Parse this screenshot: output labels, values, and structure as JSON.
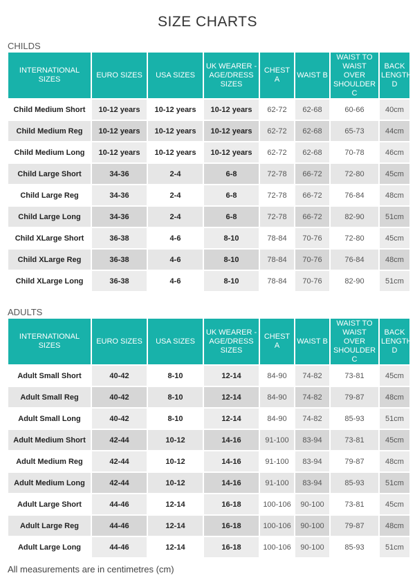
{
  "title": "SIZE CHARTS",
  "columns": [
    "INTERNATIONAL SIZES",
    "EURO SIZES",
    "USA SIZES",
    "UK WEARER - AGE/DRESS SIZES",
    "CHEST A",
    "WAIST B",
    "WAIST TO WAIST OVER SHOULDER C",
    "BACK LENGTH D"
  ],
  "sections": [
    {
      "label": "CHILDS",
      "rows": [
        [
          "Child Medium Short",
          "10-12 years",
          "10-12 years",
          "10-12 years",
          "62-72",
          "62-68",
          "60-66",
          "40cm"
        ],
        [
          "Child Medium Reg",
          "10-12 years",
          "10-12 years",
          "10-12 years",
          "62-72",
          "62-68",
          "65-73",
          "44cm"
        ],
        [
          "Child Medium Long",
          "10-12 years",
          "10-12 years",
          "10-12 years",
          "62-72",
          "62-68",
          "70-78",
          "46cm"
        ],
        [
          "Child Large Short",
          "34-36",
          "2-4",
          "6-8",
          "72-78",
          "66-72",
          "72-80",
          "45cm"
        ],
        [
          "Child Large Reg",
          "34-36",
          "2-4",
          "6-8",
          "72-78",
          "66-72",
          "76-84",
          "48cm"
        ],
        [
          "Child Large Long",
          "34-36",
          "2-4",
          "6-8",
          "72-78",
          "66-72",
          "82-90",
          "51cm"
        ],
        [
          "Child XLarge Short",
          "36-38",
          "4-6",
          "8-10",
          "78-84",
          "70-76",
          "72-80",
          "45cm"
        ],
        [
          "Child XLarge Reg",
          "36-38",
          "4-6",
          "8-10",
          "78-84",
          "70-76",
          "76-84",
          "48cm"
        ],
        [
          "Child XLarge Long",
          "36-38",
          "4-6",
          "8-10",
          "78-84",
          "70-76",
          "82-90",
          "51cm"
        ]
      ]
    },
    {
      "label": "ADULTS",
      "rows": [
        [
          "Adult Small Short",
          "40-42",
          "8-10",
          "12-14",
          "84-90",
          "74-82",
          "73-81",
          "45cm"
        ],
        [
          "Adult Small Reg",
          "40-42",
          "8-10",
          "12-14",
          "84-90",
          "74-82",
          "79-87",
          "48cm"
        ],
        [
          "Adult Small Long",
          "40-42",
          "8-10",
          "12-14",
          "84-90",
          "74-82",
          "85-93",
          "51cm"
        ],
        [
          "Adult Medium Short",
          "42-44",
          "10-12",
          "14-16",
          "91-100",
          "83-94",
          "73-81",
          "45cm"
        ],
        [
          "Adult Medium Reg",
          "42-44",
          "10-12",
          "14-16",
          "91-100",
          "83-94",
          "79-87",
          "48cm"
        ],
        [
          "Adult Medium Long",
          "42-44",
          "10-12",
          "14-16",
          "91-100",
          "83-94",
          "85-93",
          "51cm"
        ],
        [
          "Adult Large Short",
          "44-46",
          "12-14",
          "16-18",
          "100-106",
          "90-100",
          "73-81",
          "45cm"
        ],
        [
          "Adult Large Reg",
          "44-46",
          "12-14",
          "16-18",
          "100-106",
          "90-100",
          "79-87",
          "48cm"
        ],
        [
          "Adult Large Long",
          "44-46",
          "12-14",
          "16-18",
          "100-106",
          "90-100",
          "85-93",
          "51cm"
        ]
      ]
    }
  ],
  "footnote": "All measurements are in centimetres (cm)",
  "colors": {
    "header_bg": "#18b2aa",
    "header_text": "#ffffff",
    "row_light": "#ffffff",
    "row_dark": "#e6e6e6"
  }
}
